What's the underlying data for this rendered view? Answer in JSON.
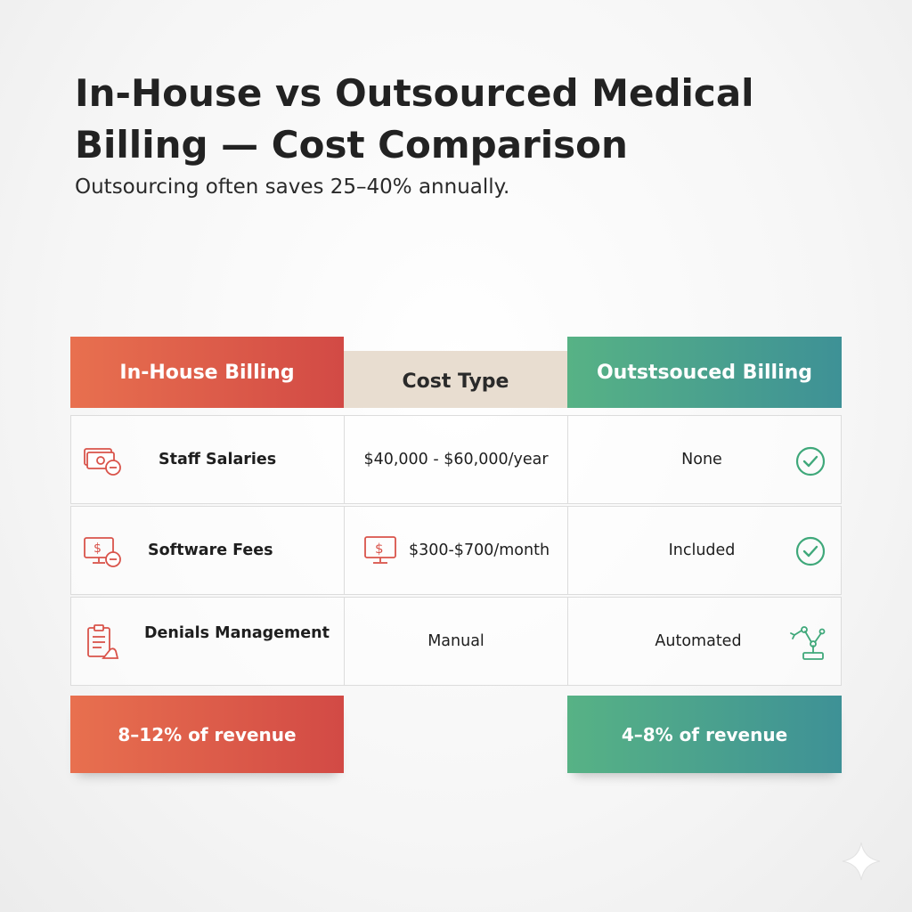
{
  "header": {
    "title": "In-House vs Outsourced Medical Billing — Cost Comparison",
    "subtitle": "Outsourcing often saves 25–40% annually."
  },
  "table": {
    "columns": [
      "In-House Billing",
      "Cost Type",
      "Outstsouced Billing"
    ],
    "rows": [
      {
        "label": "Staff Salaries",
        "in_house": "$40,000 - $60,000/year",
        "outsourced": "None",
        "label_icon": "cash-minus-icon",
        "outsourced_icon": "check-circle-icon"
      },
      {
        "label": "Software Fees",
        "in_house": "$300-$700/month",
        "outsourced": "Included",
        "label_icon": "monitor-dollar-minus-icon",
        "cost_icon": "monitor-dollar-icon",
        "outsourced_icon": "check-circle-icon"
      },
      {
        "label": "Denials Management",
        "in_house": "Manual",
        "outsourced": "Automated",
        "label_icon": "clipboard-hand-icon",
        "outsourced_icon": "robot-arm-icon"
      }
    ],
    "totals": {
      "in_house": "8–12% of revenue",
      "outsourced": "4–8% of revenue"
    }
  },
  "colors": {
    "in_house": "#d9534a",
    "outsourced": "#4aa58e",
    "cost_type": "#e8ddd0",
    "icon_red": "#d9534a",
    "icon_green": "#3fa87a"
  }
}
